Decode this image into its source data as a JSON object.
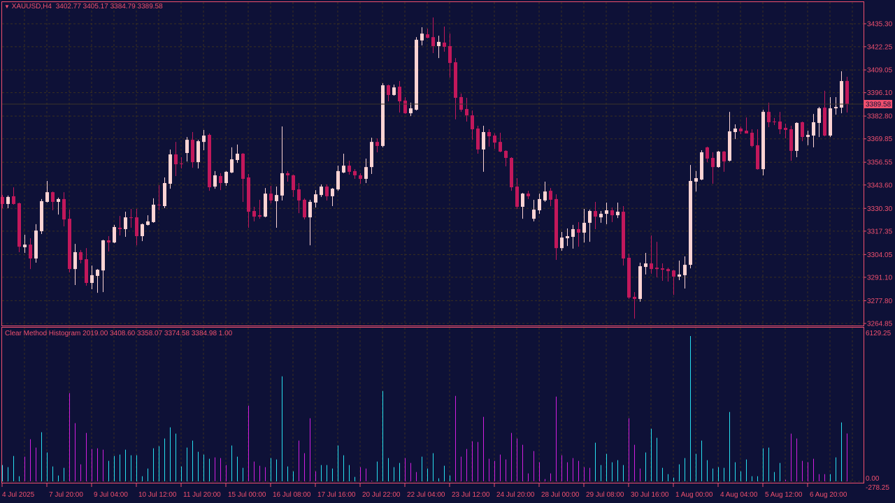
{
  "header": {
    "symbol_label": "XAUUSD,H4",
    "ohlc_values": "3402.77 3405.17 3384.79 3389.58"
  },
  "indicator_header": {
    "name": "Clear Method Histogram",
    "values": "2019.00 3408.60 3358.07 3374.58 3384.98 1.00"
  },
  "colors": {
    "background": "#0e1137",
    "frame": "#f0506e",
    "bull_candle": "#fcd3d3",
    "bear_candle": "#c2185b",
    "hist_up": "#27e0f0",
    "hist_down": "#d21ee0",
    "grid": "#3a3020"
  },
  "price_axis": {
    "ticks": [
      "3435.30",
      "3422.25",
      "3409.05",
      "3396.10",
      "3382.80",
      "3369.85",
      "3356.55",
      "3343.60",
      "3330.30",
      "3317.35",
      "3304.05",
      "3291.10",
      "3277.80",
      "3264.85"
    ],
    "current_price": "3389.58"
  },
  "indicator_axis": {
    "max_label": "6129.25",
    "zero_label": "0.00",
    "min_label": "-278.25"
  },
  "time_axis": {
    "labels": [
      "4 Jul 2025",
      "7 Jul 20:00",
      "9 Jul 04:00",
      "10 Jul 12:00",
      "11 Jul 20:00",
      "15 Jul 00:00",
      "16 Jul 08:00",
      "17 Jul 16:00",
      "20 Jul 22:00",
      "22 Jul 04:00",
      "23 Jul 12:00",
      "24 Jul 20:00",
      "28 Jul 00:00",
      "29 Jul 08:00",
      "30 Jul 16:00",
      "1 Aug 00:00",
      "4 Aug 04:00",
      "5 Aug 12:00",
      "6 Aug 20:00"
    ]
  },
  "chart_data": [
    {
      "type": "candlestick",
      "symbol": "XAUUSD",
      "timeframe": "H4",
      "ylim": [
        3264.85,
        3435.3
      ],
      "ohlc": [
        [
          3336.8,
          3337.9,
          3330.4,
          3332.8
        ],
        [
          3332.8,
          3337.6,
          3330.4,
          3336.8
        ],
        [
          3337.2,
          3342.3,
          3332.4,
          3332.8
        ],
        [
          3333.2,
          3333.6,
          3305.4,
          3308.5
        ],
        [
          3308.2,
          3315.3,
          3305.0,
          3309.7
        ],
        [
          3309.7,
          3313.3,
          3295.8,
          3301.8
        ],
        [
          3301.8,
          3321.3,
          3299.4,
          3317.7
        ],
        [
          3317.3,
          3335.6,
          3315.7,
          3334.4
        ],
        [
          3334.0,
          3345.9,
          3333.6,
          3339.5
        ],
        [
          3339.5,
          3339.9,
          3329.2,
          3334.0
        ],
        [
          3334.0,
          3336.4,
          3326.8,
          3335.6
        ],
        [
          3335.6,
          3339.5,
          3320.1,
          3324.0
        ],
        [
          3324.4,
          3329.6,
          3293.9,
          3295.8
        ],
        [
          3295.8,
          3310.1,
          3286.7,
          3305.4
        ],
        [
          3305.4,
          3306.6,
          3299.0,
          3301.0
        ],
        [
          3301.4,
          3307.7,
          3286.3,
          3287.9
        ],
        [
          3287.9,
          3297.8,
          3284.3,
          3292.3
        ],
        [
          3291.9,
          3295.8,
          3282.3,
          3295.4
        ],
        [
          3295.0,
          3312.5,
          3282.7,
          3312.1
        ],
        [
          3312.1,
          3314.5,
          3305.8,
          3310.9
        ],
        [
          3310.9,
          3320.9,
          3310.5,
          3319.7
        ],
        [
          3319.3,
          3326.0,
          3314.9,
          3318.5
        ],
        [
          3318.5,
          3328.4,
          3314.1,
          3325.2
        ],
        [
          3325.2,
          3330.0,
          3319.3,
          3324.8
        ],
        [
          3325.2,
          3330.0,
          3309.3,
          3314.5
        ],
        [
          3314.5,
          3321.7,
          3311.7,
          3321.3
        ],
        [
          3320.9,
          3326.4,
          3320.5,
          3322.9
        ],
        [
          3322.5,
          3336.0,
          3322.1,
          3332.4
        ],
        [
          3332.4,
          3343.5,
          3329.2,
          3332.0
        ],
        [
          3331.6,
          3347.9,
          3330.4,
          3344.7
        ],
        [
          3344.3,
          3363.8,
          3341.5,
          3361.0
        ],
        [
          3361.0,
          3368.1,
          3348.7,
          3355.4
        ],
        [
          3355.8,
          3359.4,
          3353.0,
          3355.4
        ],
        [
          3361.8,
          3370.9,
          3357.0,
          3369.3
        ],
        [
          3369.3,
          3373.7,
          3353.4,
          3356.6
        ],
        [
          3356.6,
          3369.3,
          3353.0,
          3368.5
        ],
        [
          3368.1,
          3374.9,
          3363.4,
          3371.7
        ],
        [
          3372.1,
          3372.9,
          3340.3,
          3342.3
        ],
        [
          3342.7,
          3351.5,
          3341.5,
          3349.1
        ],
        [
          3348.7,
          3350.3,
          3340.7,
          3344.7
        ],
        [
          3344.7,
          3351.5,
          3343.1,
          3351.1
        ],
        [
          3350.7,
          3365.0,
          3350.3,
          3358.2
        ],
        [
          3357.8,
          3366.6,
          3356.2,
          3361.4
        ],
        [
          3361.4,
          3361.8,
          3334.0,
          3347.1
        ],
        [
          3347.9,
          3349.9,
          3319.3,
          3328.4
        ],
        [
          3328.8,
          3331.2,
          3322.9,
          3325.6
        ],
        [
          3326.4,
          3335.2,
          3324.4,
          3325.6
        ],
        [
          3325.6,
          3341.9,
          3325.2,
          3338.7
        ],
        [
          3338.7,
          3343.1,
          3333.2,
          3334.8
        ],
        [
          3334.4,
          3342.7,
          3319.3,
          3337.9
        ],
        [
          3337.6,
          3376.9,
          3334.8,
          3350.3
        ],
        [
          3350.3,
          3351.5,
          3345.5,
          3349.1
        ],
        [
          3349.1,
          3349.5,
          3336.8,
          3340.7
        ],
        [
          3341.1,
          3344.7,
          3327.6,
          3334.8
        ],
        [
          3335.2,
          3336.0,
          3324.0,
          3325.2
        ],
        [
          3325.2,
          3335.2,
          3309.3,
          3334.0
        ],
        [
          3333.6,
          3340.7,
          3330.8,
          3338.3
        ],
        [
          3337.9,
          3343.9,
          3336.8,
          3342.7
        ],
        [
          3342.7,
          3343.9,
          3334.8,
          3337.2
        ],
        [
          3337.2,
          3341.9,
          3331.6,
          3341.5
        ],
        [
          3341.1,
          3354.6,
          3340.3,
          3351.5
        ],
        [
          3350.7,
          3361.4,
          3350.3,
          3354.6
        ],
        [
          3354.6,
          3357.4,
          3349.5,
          3351.1
        ],
        [
          3351.5,
          3352.6,
          3347.1,
          3349.1
        ],
        [
          3349.1,
          3350.3,
          3344.3,
          3347.1
        ],
        [
          3347.1,
          3358.6,
          3344.7,
          3353.8
        ],
        [
          3353.8,
          3370.5,
          3349.9,
          3368.1
        ],
        [
          3368.1,
          3370.1,
          3362.2,
          3365.8
        ],
        [
          3365.8,
          3401.5,
          3365.0,
          3400.3
        ],
        [
          3400.3,
          3400.7,
          3391.2,
          3394.8
        ],
        [
          3394.8,
          3400.7,
          3394.4,
          3399.1
        ],
        [
          3399.5,
          3402.7,
          3384.8,
          3391.2
        ],
        [
          3391.6,
          3393.6,
          3384.0,
          3384.4
        ],
        [
          3384.4,
          3390.4,
          3382.8,
          3387.2
        ],
        [
          3386.4,
          3427.7,
          3386.0,
          3426.2
        ],
        [
          3425.8,
          3433.3,
          3423.0,
          3429.7
        ],
        [
          3429.3,
          3432.5,
          3427.0,
          3427.3
        ],
        [
          3427.7,
          3438.9,
          3418.6,
          3422.6
        ],
        [
          3422.6,
          3428.5,
          3415.8,
          3425.0
        ],
        [
          3424.6,
          3433.7,
          3419.4,
          3422.2
        ],
        [
          3422.6,
          3429.7,
          3404.7,
          3413.0
        ],
        [
          3413.4,
          3415.8,
          3380.9,
          3393.2
        ],
        [
          3393.6,
          3395.6,
          3385.2,
          3386.4
        ],
        [
          3386.8,
          3393.2,
          3379.7,
          3383.2
        ],
        [
          3383.2,
          3386.0,
          3369.3,
          3375.3
        ],
        [
          3375.7,
          3377.3,
          3361.4,
          3363.8
        ],
        [
          3363.8,
          3377.3,
          3351.1,
          3373.7
        ],
        [
          3373.7,
          3375.3,
          3365.4,
          3371.3
        ],
        [
          3371.7,
          3372.9,
          3364.2,
          3367.7
        ],
        [
          3368.1,
          3373.3,
          3362.2,
          3362.6
        ],
        [
          3363.0,
          3363.4,
          3354.2,
          3359.0
        ],
        [
          3359.0,
          3359.4,
          3340.3,
          3342.3
        ],
        [
          3342.7,
          3347.5,
          3330.0,
          3331.2
        ],
        [
          3331.2,
          3339.1,
          3324.4,
          3338.7
        ],
        [
          3338.7,
          3340.3,
          3335.6,
          3337.2
        ],
        [
          3324.4,
          3335.2,
          3322.9,
          3329.6
        ],
        [
          3329.2,
          3338.7,
          3327.2,
          3335.6
        ],
        [
          3334.8,
          3345.5,
          3334.0,
          3339.9
        ],
        [
          3340.3,
          3341.9,
          3331.6,
          3335.2
        ],
        [
          3335.6,
          3338.3,
          3301.0,
          3307.7
        ],
        [
          3307.7,
          3316.9,
          3306.2,
          3313.7
        ],
        [
          3313.3,
          3318.9,
          3308.9,
          3314.5
        ],
        [
          3314.1,
          3320.9,
          3307.4,
          3318.5
        ],
        [
          3318.5,
          3322.5,
          3308.5,
          3316.5
        ],
        [
          3316.5,
          3330.0,
          3310.9,
          3322.1
        ],
        [
          3322.1,
          3329.6,
          3311.3,
          3328.8
        ],
        [
          3328.8,
          3334.0,
          3318.5,
          3325.6
        ],
        [
          3325.2,
          3328.8,
          3322.1,
          3327.2
        ],
        [
          3327.2,
          3333.6,
          3321.3,
          3329.2
        ],
        [
          3329.2,
          3330.8,
          3322.5,
          3326.4
        ],
        [
          3326.4,
          3333.6,
          3324.8,
          3328.4
        ],
        [
          3328.4,
          3331.6,
          3297.8,
          3301.8
        ],
        [
          3302.2,
          3304.6,
          3278.8,
          3279.6
        ],
        [
          3280.0,
          3282.7,
          3267.6,
          3278.8
        ],
        [
          3278.8,
          3299.4,
          3277.2,
          3297.4
        ],
        [
          3297.0,
          3305.0,
          3292.7,
          3299.0
        ],
        [
          3299.0,
          3314.9,
          3293.1,
          3295.8
        ],
        [
          3296.6,
          3311.3,
          3291.1,
          3295.8
        ],
        [
          3296.2,
          3299.0,
          3289.1,
          3295.4
        ],
        [
          3295.8,
          3296.6,
          3288.7,
          3294.6
        ],
        [
          3295.0,
          3295.4,
          3281.1,
          3291.5
        ],
        [
          3291.5,
          3300.6,
          3289.5,
          3292.7
        ],
        [
          3292.3,
          3303.0,
          3284.7,
          3298.2
        ],
        [
          3298.2,
          3355.0,
          3296.2,
          3345.9
        ],
        [
          3345.5,
          3351.5,
          3339.9,
          3347.5
        ],
        [
          3346.7,
          3363.4,
          3346.3,
          3362.2
        ],
        [
          3365.0,
          3365.4,
          3356.6,
          3358.6
        ],
        [
          3359.0,
          3362.2,
          3344.3,
          3353.8
        ],
        [
          3353.8,
          3363.0,
          3353.4,
          3362.6
        ],
        [
          3362.6,
          3363.0,
          3351.1,
          3357.0
        ],
        [
          3357.4,
          3385.2,
          3357.0,
          3374.1
        ],
        [
          3373.7,
          3378.1,
          3369.7,
          3375.7
        ],
        [
          3375.7,
          3376.9,
          3372.5,
          3374.1
        ],
        [
          3374.5,
          3382.0,
          3372.9,
          3372.9
        ],
        [
          3373.3,
          3375.3,
          3365.0,
          3365.8
        ],
        [
          3366.2,
          3375.3,
          3352.3,
          3352.6
        ],
        [
          3352.6,
          3386.4,
          3349.1,
          3385.2
        ],
        [
          3385.2,
          3390.4,
          3376.5,
          3379.3
        ],
        [
          3379.7,
          3381.7,
          3377.7,
          3379.3
        ],
        [
          3379.7,
          3385.2,
          3372.5,
          3375.3
        ],
        [
          3376.1,
          3378.5,
          3370.1,
          3374.9
        ],
        [
          3375.3,
          3377.3,
          3357.4,
          3363.0
        ],
        [
          3363.0,
          3379.3,
          3359.4,
          3378.9
        ],
        [
          3379.3,
          3379.7,
          3368.5,
          3370.9
        ],
        [
          3370.9,
          3374.5,
          3366.2,
          3372.1
        ],
        [
          3371.7,
          3384.0,
          3365.0,
          3379.3
        ],
        [
          3378.9,
          3388.0,
          3370.9,
          3387.2
        ],
        [
          3387.6,
          3397.2,
          3371.3,
          3371.7
        ],
        [
          3371.7,
          3393.6,
          3370.9,
          3387.2
        ],
        [
          3387.2,
          3393.6,
          3383.6,
          3388.0
        ],
        [
          3387.6,
          3408.3,
          3384.4,
          3402.7
        ],
        [
          3402.77,
          3405.17,
          3384.79,
          3389.58
        ]
      ]
    },
    {
      "type": "bar",
      "name": "Clear Method Histogram",
      "ylim": [
        -278.25,
        6129.25
      ],
      "values": [
        687,
        599,
        1070,
        216,
        1041,
        1777,
        1424,
        2072,
        1218,
        628,
        246,
        570,
        3722,
        2455,
        717,
        2043,
        1365,
        1394,
        1336,
        864,
        1070,
        1129,
        1336,
        1100,
        1100,
        216,
        540,
        1394,
        1483,
        1807,
        2278,
        2013,
        628,
        1424,
        1719,
        1247,
        1129,
        953,
        1011,
        982,
        687,
        1512,
        1041,
        570,
        3192,
        835,
        658,
        599,
        982,
        923,
        4429,
        628,
        422,
        1719,
        1188,
        2661,
        422,
        687,
        687,
        540,
        1512,
        1100,
        687,
        187,
        599,
        540,
        10,
        835,
        3810,
        982,
        599,
        776,
        982,
        776,
        393,
        1041,
        540,
        1188,
        128,
        658,
        246,
        3604,
        1041,
        1365,
        1689,
        1660,
        2720,
        953,
        864,
        1129,
        923,
        2043,
        1807,
        1542,
        334,
        1277,
        805,
        98,
        334,
        3574,
        1100,
        805,
        982,
        864,
        599,
        570,
        1630,
        687,
        1159,
        805,
        894,
        687,
        2661,
        1542,
        540,
        1218,
        2219,
        1836,
        570,
        304,
        157,
        717,
        982,
        6129.25,
        1159,
        1719,
        894,
        540,
        599,
        570,
        2926,
        805,
        422,
        923,
        216,
        216,
        1394,
        1424,
        393,
        776,
        69,
        2013,
        1807,
        864,
        805,
        953,
        304,
        304,
        304,
        1011,
        2484,
        2019
      ],
      "direction": [
        "up",
        "up",
        "up",
        "up",
        "down",
        "down",
        "down",
        "up",
        "up",
        "up",
        "up",
        "up",
        "down",
        "down",
        "down",
        "down",
        "down",
        "down",
        "down",
        "up",
        "up",
        "up",
        "up",
        "up",
        "up",
        "up",
        "up",
        "up",
        "up",
        "up",
        "up",
        "up",
        "up",
        "up",
        "up",
        "up",
        "up",
        "up",
        "down",
        "down",
        "down",
        "up",
        "up",
        "up",
        "down",
        "down",
        "down",
        "down",
        "up",
        "up",
        "up",
        "up",
        "up",
        "down",
        "down",
        "down",
        "down",
        "up",
        "up",
        "up",
        "up",
        "up",
        "up",
        "up",
        "down",
        "down",
        "down",
        "up",
        "up",
        "up",
        "up",
        "up",
        "down",
        "down",
        "down",
        "up",
        "up",
        "up",
        "up",
        "up",
        "up",
        "down",
        "down",
        "down",
        "down",
        "down",
        "down",
        "down",
        "down",
        "down",
        "down",
        "down",
        "down",
        "down",
        "down",
        "down",
        "down",
        "down",
        "down",
        "down",
        "down",
        "down",
        "down",
        "down",
        "down",
        "down",
        "up",
        "up",
        "up",
        "up",
        "up",
        "up",
        "down",
        "down",
        "down",
        "up",
        "up",
        "up",
        "up",
        "up",
        "up",
        "up",
        "up",
        "up",
        "up",
        "up",
        "up",
        "up",
        "up",
        "up",
        "up",
        "up",
        "up",
        "up",
        "up",
        "up",
        "up",
        "up",
        "up",
        "up",
        "down",
        "down",
        "down",
        "down",
        "down",
        "down",
        "down",
        "down",
        "up",
        "up",
        "up"
      ]
    }
  ]
}
